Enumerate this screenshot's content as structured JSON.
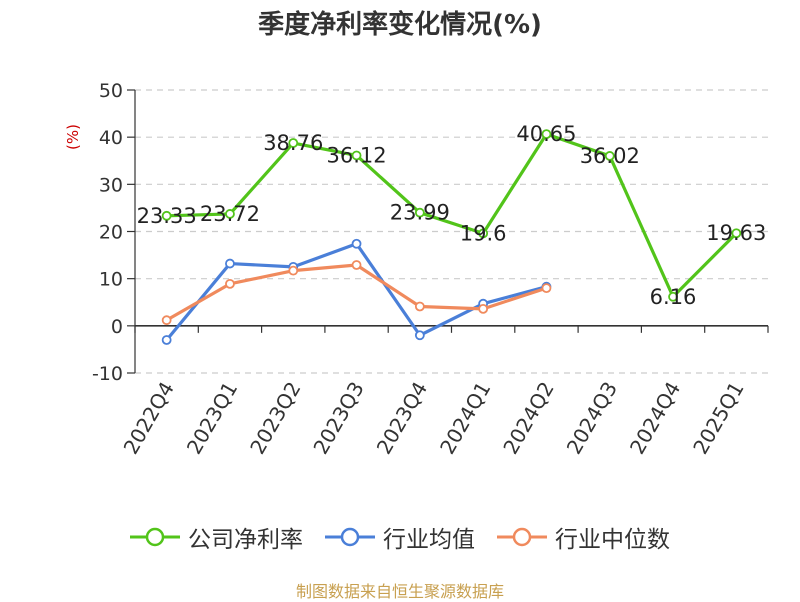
{
  "chart_data": {
    "type": "line",
    "title": "季度净利率变化情况(%)",
    "ylabel": "(%)",
    "categories": [
      "2022Q4",
      "2023Q1",
      "2023Q2",
      "2023Q3",
      "2023Q4",
      "2024Q1",
      "2024Q2",
      "2024Q3",
      "2024Q4",
      "2025Q1"
    ],
    "ylim": [
      -10,
      50
    ],
    "yticks": [
      "-10",
      "0",
      "10",
      "20",
      "30",
      "40",
      "50"
    ],
    "grid": true,
    "legend_position": "bottom",
    "series": [
      {
        "name": "公司净利率",
        "color": "#52c41a",
        "values": [
          23.33,
          23.72,
          38.76,
          36.12,
          23.99,
          19.6,
          40.65,
          36.02,
          6.16,
          19.63
        ],
        "labels": [
          "23.33",
          "23.72",
          "38.76",
          "36.12",
          "23.99",
          "19.6",
          "40.65",
          "36.02",
          "6.16",
          "19.63"
        ]
      },
      {
        "name": "行业均值",
        "color": "#4a7fd8",
        "values": [
          -3.0,
          13.2,
          12.5,
          17.4,
          -2.0,
          4.7,
          8.3,
          null,
          null,
          null
        ]
      },
      {
        "name": "行业中位数",
        "color": "#f08a5d",
        "values": [
          1.2,
          8.9,
          11.7,
          12.9,
          4.1,
          3.6,
          8.0,
          null,
          null,
          null
        ]
      }
    ]
  },
  "source": "制图数据来自恒生聚源数据库"
}
